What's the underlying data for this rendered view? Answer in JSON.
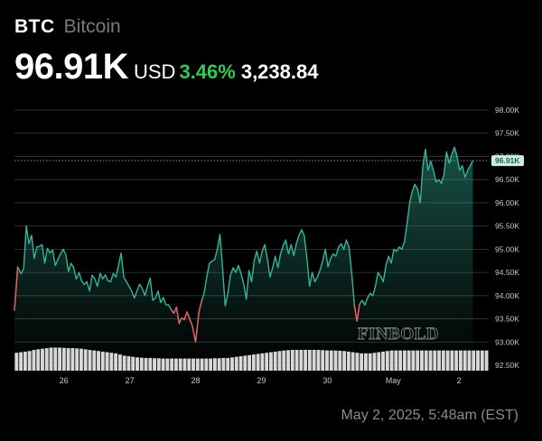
{
  "asset": {
    "ticker": "BTC",
    "name": "Bitcoin",
    "price": "96.91K",
    "currency": "USD",
    "change_pct": "3.46%",
    "change_abs": "3,238.84",
    "timestamp": "May 2, 2025, 5:48am (EST)",
    "watermark": "FINBOLD"
  },
  "colors": {
    "background": "#000000",
    "line": "#36b39a",
    "dip": "#e35a5a",
    "positive": "#2ecc52",
    "volume": "#d9d9d9",
    "grid": "#3a3a3a"
  },
  "chart_data": {
    "type": "line",
    "ylim": [
      92500,
      98000
    ],
    "yticks": [
      98000,
      97500,
      97000,
      96500,
      96000,
      95500,
      95000,
      94500,
      94000,
      93500,
      93000,
      92500
    ],
    "ytick_labels": [
      "98.00K",
      "97.50K",
      "97.00K",
      "96.50K",
      "96.00K",
      "95.50K",
      "95.00K",
      "94.50K",
      "94.00K",
      "93.50K",
      "93.00K",
      "92.50K"
    ],
    "xlim": [
      0,
      7.2
    ],
    "xticks": [
      0.75,
      1.75,
      2.75,
      3.75,
      4.75,
      5.75,
      6.75
    ],
    "xtick_labels": [
      "26",
      "27",
      "28",
      "29",
      "30",
      "May",
      "2"
    ],
    "current_price_label": "96.91K",
    "current_price": 96910,
    "series": [
      {
        "points": [
          [
            0.0,
            93680
          ],
          [
            0.05,
            94620
          ],
          [
            0.1,
            94470
          ],
          [
            0.14,
            94580
          ],
          [
            0.18,
            95500
          ],
          [
            0.22,
            95120
          ],
          [
            0.26,
            95300
          ],
          [
            0.3,
            94800
          ],
          [
            0.34,
            95050
          ],
          [
            0.38,
            95060
          ],
          [
            0.42,
            95100
          ],
          [
            0.46,
            94700
          ],
          [
            0.5,
            95020
          ],
          [
            0.54,
            94920
          ],
          [
            0.58,
            94980
          ],
          [
            0.62,
            94650
          ],
          [
            0.66,
            94780
          ],
          [
            0.7,
            94900
          ],
          [
            0.74,
            95000
          ],
          [
            0.78,
            94880
          ],
          [
            0.82,
            94520
          ],
          [
            0.86,
            94700
          ],
          [
            0.9,
            94600
          ],
          [
            0.94,
            94360
          ],
          [
            0.98,
            94500
          ],
          [
            1.02,
            94320
          ],
          [
            1.06,
            94240
          ],
          [
            1.1,
            94300
          ],
          [
            1.14,
            94100
          ],
          [
            1.18,
            94440
          ],
          [
            1.22,
            94360
          ],
          [
            1.26,
            94200
          ],
          [
            1.3,
            94480
          ],
          [
            1.34,
            94360
          ],
          [
            1.38,
            94450
          ],
          [
            1.42,
            94320
          ],
          [
            1.46,
            94300
          ],
          [
            1.5,
            94480
          ],
          [
            1.54,
            94400
          ],
          [
            1.58,
            94650
          ],
          [
            1.62,
            94920
          ],
          [
            1.66,
            94400
          ],
          [
            1.7,
            94300
          ],
          [
            1.74,
            94200
          ],
          [
            1.78,
            94100
          ],
          [
            1.82,
            93950
          ],
          [
            1.86,
            94100
          ],
          [
            1.9,
            94250
          ],
          [
            1.94,
            94150
          ],
          [
            1.98,
            94000
          ],
          [
            2.02,
            94200
          ],
          [
            2.06,
            94380
          ],
          [
            2.1,
            93900
          ],
          [
            2.14,
            93950
          ],
          [
            2.18,
            94100
          ],
          [
            2.22,
            93850
          ],
          [
            2.26,
            93960
          ],
          [
            2.3,
            93800
          ],
          [
            2.34,
            93800
          ],
          [
            2.38,
            93700
          ],
          [
            2.42,
            93620
          ],
          [
            2.46,
            93750
          ],
          [
            2.5,
            93400
          ],
          [
            2.54,
            93520
          ],
          [
            2.58,
            93480
          ],
          [
            2.62,
            93650
          ],
          [
            2.66,
            93500
          ],
          [
            2.7,
            93350
          ],
          [
            2.75,
            93000
          ],
          [
            2.8,
            93640
          ],
          [
            2.84,
            93880
          ],
          [
            2.88,
            94060
          ],
          [
            2.92,
            94400
          ],
          [
            2.96,
            94700
          ],
          [
            3.0,
            94740
          ],
          [
            3.04,
            94780
          ],
          [
            3.08,
            95000
          ],
          [
            3.12,
            95320
          ],
          [
            3.16,
            94600
          ],
          [
            3.2,
            93780
          ],
          [
            3.24,
            94050
          ],
          [
            3.28,
            94450
          ],
          [
            3.32,
            94600
          ],
          [
            3.36,
            94500
          ],
          [
            3.4,
            94650
          ],
          [
            3.44,
            94480
          ],
          [
            3.48,
            94250
          ],
          [
            3.52,
            93920
          ],
          [
            3.56,
            94540
          ],
          [
            3.6,
            94300
          ],
          [
            3.64,
            94750
          ],
          [
            3.68,
            94960
          ],
          [
            3.72,
            94700
          ],
          [
            3.76,
            94950
          ],
          [
            3.8,
            95100
          ],
          [
            3.84,
            94800
          ],
          [
            3.88,
            94400
          ],
          [
            3.92,
            94600
          ],
          [
            3.96,
            94850
          ],
          [
            4.0,
            94600
          ],
          [
            4.04,
            94900
          ],
          [
            4.08,
            95080
          ],
          [
            4.12,
            95200
          ],
          [
            4.16,
            94900
          ],
          [
            4.2,
            95100
          ],
          [
            4.24,
            94860
          ],
          [
            4.28,
            95120
          ],
          [
            4.32,
            95300
          ],
          [
            4.36,
            95420
          ],
          [
            4.4,
            95300
          ],
          [
            4.44,
            94800
          ],
          [
            4.48,
            94200
          ],
          [
            4.52,
            94500
          ],
          [
            4.56,
            94300
          ],
          [
            4.6,
            94400
          ],
          [
            4.64,
            94550
          ],
          [
            4.68,
            94750
          ],
          [
            4.72,
            95000
          ],
          [
            4.76,
            94620
          ],
          [
            4.8,
            94800
          ],
          [
            4.84,
            94900
          ],
          [
            4.88,
            94850
          ],
          [
            4.92,
            95050
          ],
          [
            4.96,
            95120
          ],
          [
            5.0,
            95000
          ],
          [
            5.04,
            95200
          ],
          [
            5.08,
            95040
          ],
          [
            5.12,
            94500
          ],
          [
            5.16,
            93800
          ],
          [
            5.2,
            93450
          ],
          [
            5.24,
            93820
          ],
          [
            5.28,
            93900
          ],
          [
            5.32,
            93800
          ],
          [
            5.36,
            93950
          ],
          [
            5.4,
            94050
          ],
          [
            5.44,
            94000
          ],
          [
            5.48,
            94200
          ],
          [
            5.52,
            94500
          ],
          [
            5.56,
            94420
          ],
          [
            5.6,
            94300
          ],
          [
            5.64,
            94650
          ],
          [
            5.68,
            94850
          ],
          [
            5.72,
            94700
          ],
          [
            5.76,
            95000
          ],
          [
            5.8,
            94950
          ],
          [
            5.84,
            95050
          ],
          [
            5.88,
            95000
          ],
          [
            5.92,
            95150
          ],
          [
            5.96,
            95550
          ],
          [
            6.0,
            96000
          ],
          [
            6.04,
            96250
          ],
          [
            6.08,
            96400
          ],
          [
            6.12,
            96300
          ],
          [
            6.16,
            96000
          ],
          [
            6.2,
            96800
          ],
          [
            6.24,
            97150
          ],
          [
            6.28,
            96700
          ],
          [
            6.32,
            96900
          ],
          [
            6.36,
            96700
          ],
          [
            6.4,
            96450
          ],
          [
            6.44,
            96500
          ],
          [
            6.48,
            96420
          ],
          [
            6.52,
            96600
          ],
          [
            6.56,
            97100
          ],
          [
            6.6,
            96850
          ],
          [
            6.64,
            97050
          ],
          [
            6.68,
            97200
          ],
          [
            6.72,
            97000
          ],
          [
            6.76,
            96700
          ],
          [
            6.8,
            96800
          ],
          [
            6.84,
            96550
          ],
          [
            6.88,
            96700
          ],
          [
            6.92,
            96800
          ],
          [
            6.96,
            96910
          ]
        ]
      }
    ],
    "volume": [
      0.62,
      0.64,
      0.66,
      0.68,
      0.72,
      0.74,
      0.76,
      0.78,
      0.8,
      0.8,
      0.8,
      0.79,
      0.78,
      0.78,
      0.77,
      0.76,
      0.74,
      0.72,
      0.7,
      0.68,
      0.66,
      0.64,
      0.62,
      0.6,
      0.56,
      0.52,
      0.5,
      0.48,
      0.46,
      0.45,
      0.44,
      0.44,
      0.43,
      0.43,
      0.42,
      0.42,
      0.42,
      0.42,
      0.42,
      0.42,
      0.42,
      0.42,
      0.42,
      0.42,
      0.42,
      0.42,
      0.43,
      0.43,
      0.44,
      0.44,
      0.46,
      0.48,
      0.5,
      0.52,
      0.54,
      0.56,
      0.58,
      0.6,
      0.62,
      0.64,
      0.66,
      0.68,
      0.7,
      0.71,
      0.72,
      0.72,
      0.72,
      0.72,
      0.72,
      0.72,
      0.72,
      0.71,
      0.7,
      0.7,
      0.7,
      0.69,
      0.68,
      0.66,
      0.64,
      0.62,
      0.6,
      0.6,
      0.6,
      0.62,
      0.64,
      0.66,
      0.68,
      0.7,
      0.7,
      0.7,
      0.7,
      0.7,
      0.7,
      0.7,
      0.7,
      0.7,
      0.7,
      0.7,
      0.7,
      0.7,
      0.7,
      0.7,
      0.7,
      0.7,
      0.7,
      0.7,
      0.7,
      0.7,
      0.7,
      0.7
    ]
  }
}
